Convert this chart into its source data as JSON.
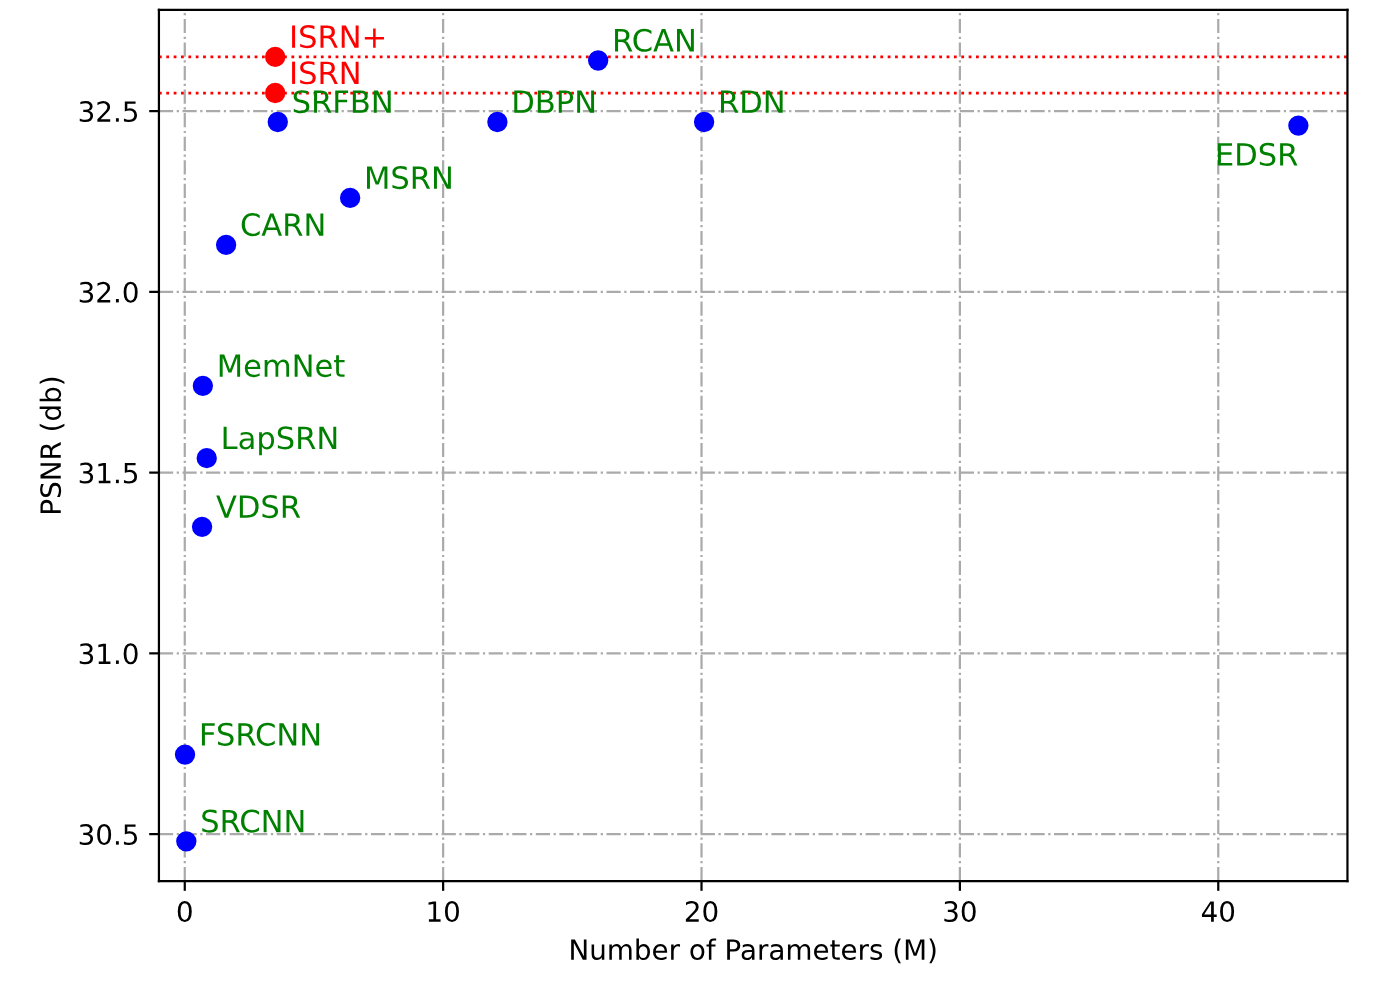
{
  "chart_data": {
    "type": "scatter",
    "xlabel": "Number of Parameters (M)",
    "ylabel": "PSNR (db)",
    "series": [
      {
        "color": "#0000ff",
        "x": [
          3.6,
          16.0,
          12.1,
          20.1,
          43.1,
          6.4,
          1.6,
          0.7,
          0.85,
          0.67,
          0.01,
          0.06
        ],
        "values": [
          32.47,
          32.64,
          32.47,
          32.47,
          32.46,
          32.26,
          32.13,
          31.74,
          31.54,
          31.35,
          30.72,
          30.48
        ],
        "value_labels": [
          "SRFBN",
          "RCAN",
          "DBPN",
          "RDN",
          "EDSR",
          "MSRN",
          "CARN",
          "MemNet",
          "LapSRN",
          "VDSR",
          "FSRCNN",
          "SRCNN"
        ]
      },
      {
        "color": "#ff0000",
        "x": [
          3.5,
          3.5
        ],
        "values": [
          32.65,
          32.55
        ],
        "value_labels": [
          "ISRN+",
          "ISRN"
        ]
      }
    ],
    "ref_lines": [
      {
        "axis": "y",
        "value": 32.65,
        "color": "#ff0000",
        "line_style": "dotted"
      },
      {
        "axis": "y",
        "value": 32.55,
        "color": "#ff0000",
        "line_style": "dotted"
      }
    ],
    "xlim": [
      -1.0,
      45.0
    ],
    "ylim": [
      30.37,
      32.78
    ],
    "xticks": [
      0,
      10,
      20,
      30,
      40
    ],
    "yticks": [
      30.5,
      {
        "value": 31,
        "label": "31.0"
      },
      31.5,
      {
        "value": 32,
        "label": "32.0"
      },
      32.5
    ],
    "grid": true,
    "marker": "circle"
  }
}
